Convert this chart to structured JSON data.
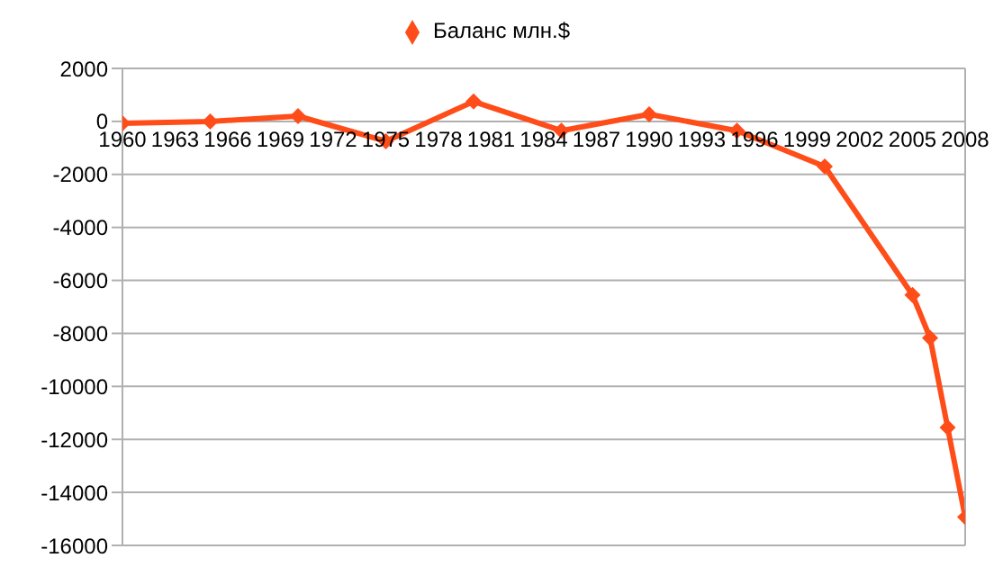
{
  "chart_data": {
    "type": "line",
    "x": [
      1960,
      1965,
      1970,
      1975,
      1980,
      1985,
      1990,
      1995,
      2000,
      2005,
      2006,
      2007,
      2008
    ],
    "series": [
      {
        "name": "Баланс млн.$",
        "color": "#ff4d1a",
        "values": [
          -70,
          0,
          200,
          -750,
          750,
          -350,
          270,
          -350,
          -1700,
          -6550,
          -8170,
          -11550,
          -14930
        ]
      }
    ],
    "xlim": [
      1960,
      2008
    ],
    "xticks": [
      1960,
      1963,
      1966,
      1969,
      1972,
      1975,
      1978,
      1981,
      1984,
      1987,
      1990,
      1993,
      1996,
      1999,
      2002,
      2005,
      2008
    ],
    "ylim": [
      -16000,
      2000
    ],
    "yticks": [
      -16000,
      -14000,
      -12000,
      -10000,
      -8000,
      -6000,
      -4000,
      -2000,
      0,
      2000
    ],
    "grid": "y",
    "legend": "top",
    "marker": "diamond",
    "line_style": "solid"
  }
}
